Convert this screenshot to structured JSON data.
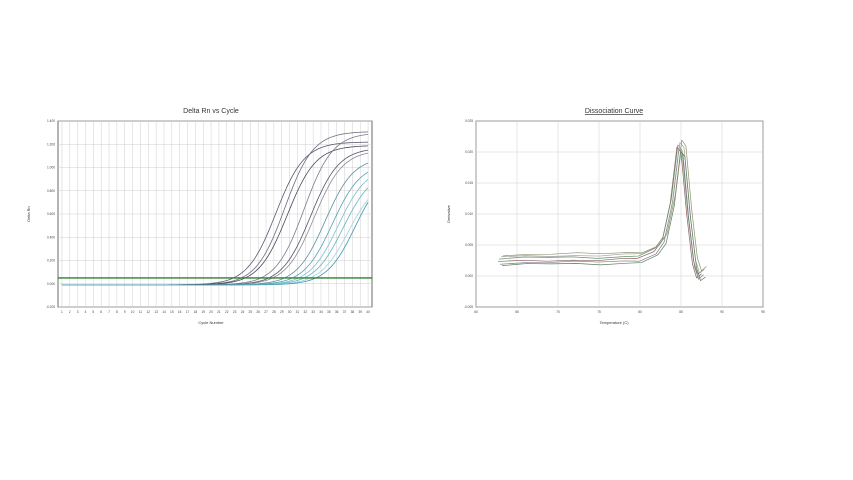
{
  "chart_data": [
    {
      "type": "line",
      "title": "Delta Rn vs Cycle",
      "xlabel": "Cycle Number",
      "ylabel": "Delta Rn",
      "xlim": [
        0.5,
        40.5
      ],
      "ylim": [
        -0.2,
        1.4
      ],
      "x_ticks": [
        1,
        2,
        3,
        4,
        5,
        6,
        7,
        8,
        9,
        10,
        11,
        12,
        13,
        14,
        15,
        16,
        17,
        18,
        19,
        20,
        21,
        22,
        23,
        24,
        25,
        26,
        27,
        28,
        29,
        30,
        31,
        32,
        33,
        34,
        35,
        36,
        37,
        38,
        39,
        40
      ],
      "y_ticks": [
        {
          "value": -0.2,
          "label": "-0.200"
        },
        {
          "value": 0.0,
          "label": "0.000"
        },
        {
          "value": 0.2,
          "label": "0.200"
        },
        {
          "value": 0.4,
          "label": "0.400"
        },
        {
          "value": 0.6,
          "label": "0.600"
        },
        {
          "value": 0.8,
          "label": "0.800"
        },
        {
          "value": 1.0,
          "label": "1.000"
        },
        {
          "value": 1.2,
          "label": "1.200"
        },
        {
          "value": 1.4,
          "label": "1.400"
        }
      ],
      "grid": true,
      "threshold": 0.05,
      "threshold_color": "#2e7d32",
      "series": [
        {
          "color": "#5a5a6e",
          "ct": 22.5,
          "plateau": 1.23
        },
        {
          "color": "#6d6d82",
          "ct": 23.5,
          "plateau": 1.32
        },
        {
          "color": "#4a4a5c",
          "ct": 24.0,
          "plateau": 1.2
        },
        {
          "color": "#7a7a8c",
          "ct": 26.0,
          "plateau": 1.31
        },
        {
          "color": "#555566",
          "ct": 27.0,
          "plateau": 1.18
        },
        {
          "color": "#8a8a9a",
          "ct": 27.5,
          "plateau": 1.16
        },
        {
          "color": "#5e8fa0",
          "ct": 29.0,
          "plateau": 1.1
        },
        {
          "color": "#4fa3b5",
          "ct": 30.0,
          "plateau": 1.05
        },
        {
          "color": "#7bc0cc",
          "ct": 30.8,
          "plateau": 1.02
        },
        {
          "color": "#5fb6c6",
          "ct": 31.5,
          "plateau": 0.98
        },
        {
          "color": "#9fd3db",
          "ct": 32.3,
          "plateau": 0.92
        },
        {
          "color": "#3f98ad",
          "ct": 33.0,
          "plateau": 1.0
        }
      ]
    },
    {
      "type": "line",
      "title": "Dissociation Curve",
      "xlabel": "Temperature (C)",
      "ylabel": "Derivative",
      "xlim": [
        60,
        95
      ],
      "ylim": [
        -0.005,
        0.025
      ],
      "x_ticks": [
        {
          "value": 60,
          "label": "60"
        },
        {
          "value": 65,
          "label": "65"
        },
        {
          "value": 70,
          "label": "70"
        },
        {
          "value": 75,
          "label": "75"
        },
        {
          "value": 80,
          "label": "80"
        },
        {
          "value": 85,
          "label": "85"
        },
        {
          "value": 90,
          "label": "90"
        },
        {
          "value": 95,
          "label": "95"
        }
      ],
      "y_ticks": [
        {
          "value": -0.005,
          "label": "-0.005"
        },
        {
          "value": 0.0,
          "label": "0.000"
        },
        {
          "value": 0.005,
          "label": "0.005"
        },
        {
          "value": 0.01,
          "label": "0.010"
        },
        {
          "value": 0.015,
          "label": "0.015"
        },
        {
          "value": 0.02,
          "label": "0.020"
        },
        {
          "value": 0.025,
          "label": "0.025"
        }
      ],
      "grid": true,
      "series_points": [
        [
          63.0,
          0.0025
        ],
        [
          66.0,
          0.0026
        ],
        [
          69.0,
          0.0027
        ],
        [
          72.0,
          0.0027
        ],
        [
          75.0,
          0.0027
        ],
        [
          78.0,
          0.0028
        ],
        [
          80.0,
          0.003
        ],
        [
          82.0,
          0.004
        ],
        [
          83.0,
          0.006
        ],
        [
          84.0,
          0.012
        ],
        [
          84.8,
          0.021
        ],
        [
          85.3,
          0.02
        ],
        [
          86.0,
          0.01
        ],
        [
          86.7,
          0.002
        ],
        [
          87.2,
          0.0
        ],
        [
          87.8,
          0.0005
        ]
      ],
      "series_colors": [
        "#8b5e5e",
        "#6b8f6b",
        "#7a7a8c",
        "#a0a0a0",
        "#5b7f5b",
        "#8f8f6f"
      ]
    }
  ]
}
